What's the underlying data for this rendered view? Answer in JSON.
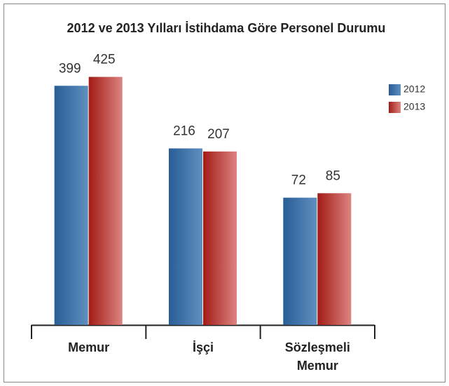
{
  "chart_data": {
    "type": "bar",
    "title": "2012 ve 2013 Yılları İstihdama Göre Personel Durumu",
    "categories": [
      "Memur",
      "İşçi",
      "Sözleşmeli Memur"
    ],
    "series": [
      {
        "name": "2012",
        "color": "#2f6fb0",
        "values": [
          399,
          216,
          72
        ]
      },
      {
        "name": "2013",
        "color": "#c0201a",
        "values": [
          425,
          207,
          85
        ]
      }
    ],
    "ylim": [
      -300,
      500
    ],
    "legend": "right"
  }
}
